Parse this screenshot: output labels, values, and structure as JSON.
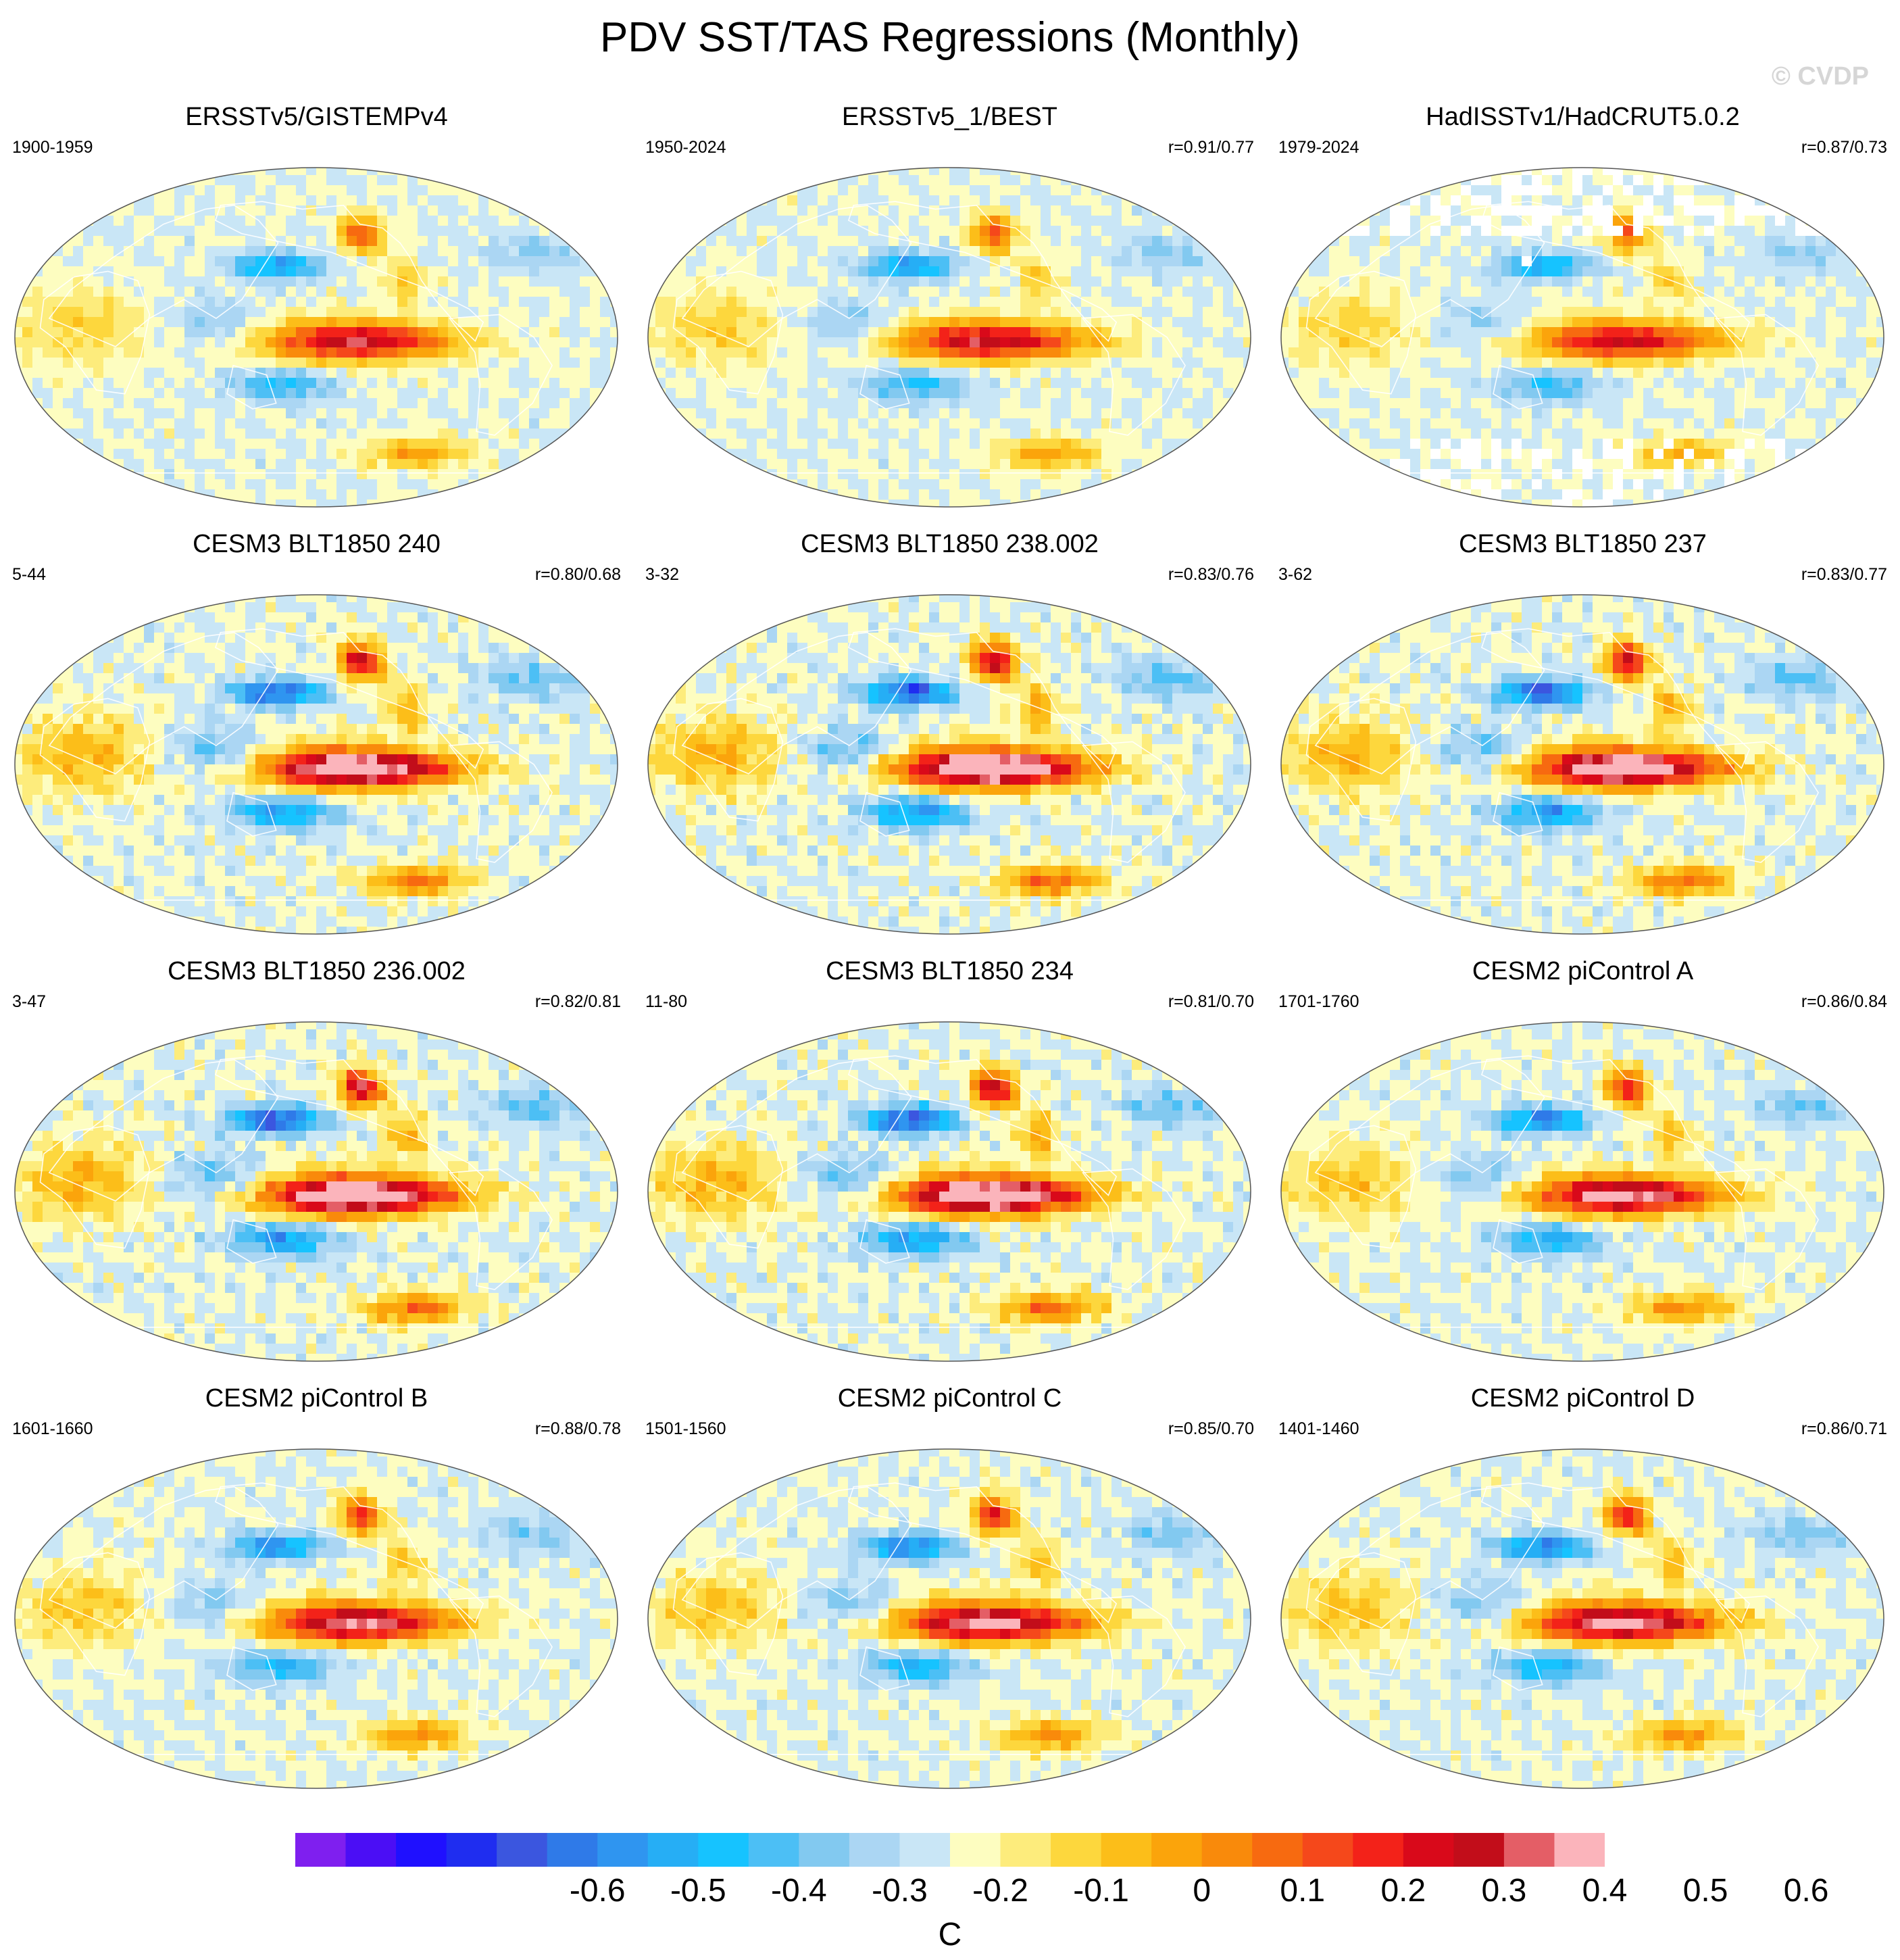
{
  "title": "PDV SST/TAS Regressions (Monthly)",
  "watermark": "© CVDP",
  "colorbar": {
    "unit": "C",
    "tick_labels": [
      "-0.6",
      "-0.5",
      "-0.4",
      "-0.3",
      "-0.2",
      "-0.1",
      "0",
      "0.1",
      "0.2",
      "0.3",
      "0.4",
      "0.5",
      "0.6"
    ],
    "colors": [
      "#7f1fef",
      "#4b0ef5",
      "#1f10ff",
      "#1f2df0",
      "#3b56df",
      "#2f7ae8",
      "#2f95f0",
      "#26aef5",
      "#16c3ff",
      "#4cbff5",
      "#82c9f0",
      "#abd6f3",
      "#c9e6f6",
      "#fdfdc0",
      "#fdec7c",
      "#fdd73d",
      "#fcbe19",
      "#fba40b",
      "#f98a0b",
      "#f76a10",
      "#f5481b",
      "#f32219",
      "#d9091a",
      "#c20d1a",
      "#e45e66",
      "#fbb4bb"
    ]
  },
  "chart_data": [
    {
      "type": "heatmap",
      "title": "ERSSTv5/GISTEMPv4",
      "period": "1900-1959",
      "corr": "",
      "missing": false,
      "intensity": 0.75
    },
    {
      "type": "heatmap",
      "title": "ERSSTv5_1/BEST",
      "period": "1950-2024",
      "corr": "r=0.91/0.77",
      "missing": false,
      "intensity": 0.75
    },
    {
      "type": "heatmap",
      "title": "HadISSTv1/HadCRUT5.0.2",
      "period": "1979-2024",
      "corr": "r=0.87/0.73",
      "missing": true,
      "intensity": 0.7
    },
    {
      "type": "heatmap",
      "title": "CESM3 BLT1850 240",
      "period": "5-44",
      "corr": "r=0.80/0.68",
      "missing": false,
      "intensity": 1.05
    },
    {
      "type": "heatmap",
      "title": "CESM3 BLT1850 238.002",
      "period": "3-32",
      "corr": "r=0.83/0.76",
      "missing": false,
      "intensity": 1.1
    },
    {
      "type": "heatmap",
      "title": "CESM3 BLT1850 237",
      "period": "3-62",
      "corr": "r=0.83/0.77",
      "missing": false,
      "intensity": 1.05
    },
    {
      "type": "heatmap",
      "title": "CESM3 BLT1850 236.002",
      "period": "3-47",
      "corr": "r=0.82/0.81",
      "missing": false,
      "intensity": 1.1
    },
    {
      "type": "heatmap",
      "title": "CESM3 BLT1850 234",
      "period": "11-80",
      "corr": "r=0.81/0.70",
      "missing": false,
      "intensity": 1.1
    },
    {
      "type": "heatmap",
      "title": "CESM2 piControl A",
      "period": "1701-1760",
      "corr": "r=0.86/0.84",
      "missing": false,
      "intensity": 0.9
    },
    {
      "type": "heatmap",
      "title": "CESM2 piControl B",
      "period": "1601-1660",
      "corr": "r=0.88/0.78",
      "missing": false,
      "intensity": 0.85
    },
    {
      "type": "heatmap",
      "title": "CESM2 piControl C",
      "period": "1501-1560",
      "corr": "r=0.85/0.70",
      "missing": false,
      "intensity": 0.9
    },
    {
      "type": "heatmap",
      "title": "CESM2 piControl D",
      "period": "1401-1460",
      "corr": "r=0.86/0.71",
      "missing": false,
      "intensity": 0.9
    }
  ]
}
